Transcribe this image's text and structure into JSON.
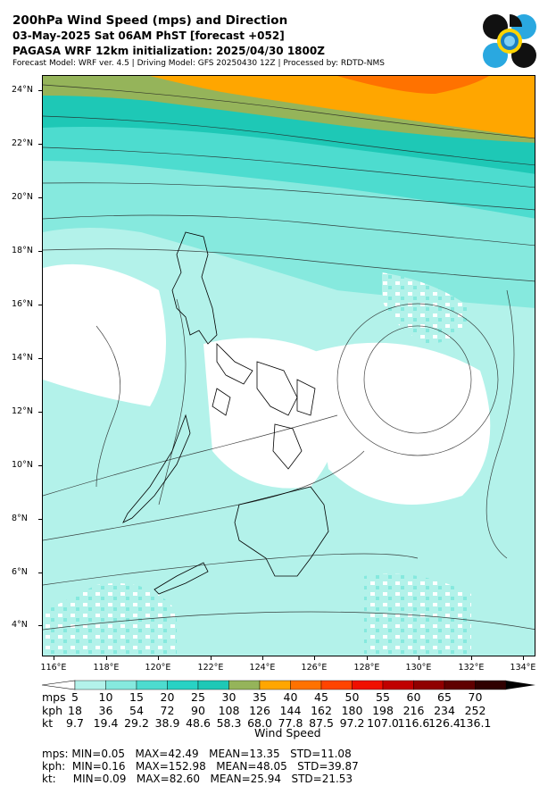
{
  "header": {
    "title": "200hPa Wind Speed (mps) and Direction",
    "line2": "03-May-2025 Sat 06AM PhST [forecast +052]",
    "line3": "PAGASA WRF 12km initialization: 2025/04/30 1800Z",
    "line4": "Forecast Model: WRF ver. 4.5 | Driving Model: GFS 20250430 12Z | Processed by: RDTD-NMS"
  },
  "map": {
    "lat_labels": [
      "24°N",
      "22°N",
      "20°N",
      "18°N",
      "16°N",
      "14°N",
      "12°N",
      "10°N",
      "8°N",
      "6°N",
      "4°N"
    ],
    "lon_labels": [
      "116°E",
      "118°E",
      "120°E",
      "122°E",
      "124°E",
      "126°E",
      "128°E",
      "130°E",
      "132°E",
      "134°E"
    ]
  },
  "colorbar": {
    "title": "Wind Speed",
    "row_labels": {
      "mps": "mps",
      "kph": "kph",
      "kt": "kt"
    },
    "colors": [
      "#b3f2ea",
      "#86e9de",
      "#4ddccf",
      "#28d2c4",
      "#1ec8b6",
      "#95b45a",
      "#ffa600",
      "#ff7200",
      "#ff4400",
      "#f01000",
      "#c00000",
      "#900000",
      "#600000",
      "#300000"
    ],
    "mps": [
      "5",
      "10",
      "15",
      "20",
      "25",
      "30",
      "35",
      "40",
      "45",
      "50",
      "55",
      "60",
      "65",
      "70"
    ],
    "kph": [
      "18",
      "36",
      "54",
      "72",
      "90",
      "108",
      "126",
      "144",
      "162",
      "180",
      "198",
      "216",
      "234",
      "252"
    ],
    "kt": [
      "9.7",
      "19.4",
      "29.2",
      "38.9",
      "48.6",
      "58.3",
      "68.0",
      "77.8",
      "87.5",
      "97.2",
      "107.0",
      "116.6",
      "126.4",
      "136.1"
    ]
  },
  "stats": {
    "mps": "mps: MIN=0.05   MAX=42.49   MEAN=13.35   STD=11.08",
    "kph": "kph:  MIN=0.16   MAX=152.98   MEAN=48.05   STD=39.87",
    "kt": "kt:     MIN=0.09   MAX=82.60   MEAN=25.94   STD=21.53"
  }
}
